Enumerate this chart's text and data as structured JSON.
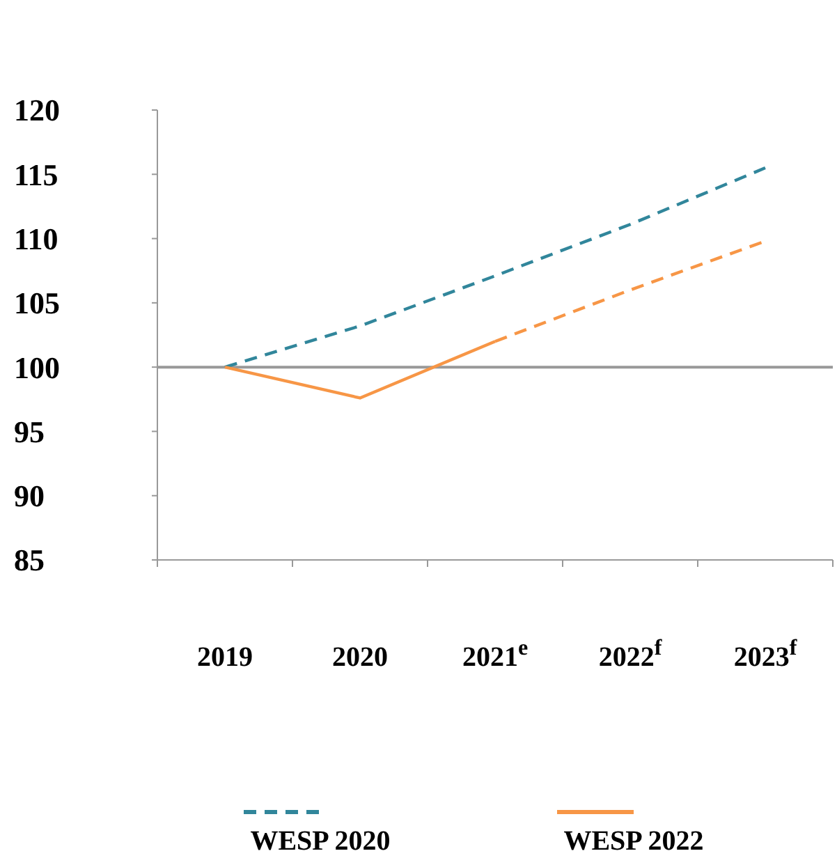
{
  "chart_data": {
    "type": "line",
    "categories": [
      "2019",
      "2020",
      "2021$^{e}$",
      "2022$^{f}$",
      "2023$^{f}$"
    ],
    "series": [
      {
        "name": "WESP 2020",
        "color": "#31869b",
        "values": [
          100,
          103.2,
          107.1,
          111.1,
          115.5
        ],
        "line_style": "dashed"
      },
      {
        "name": "WESP 2022",
        "color": "#f79646",
        "values": [
          100,
          97.6,
          102,
          null,
          null
        ],
        "line_style": "solid"
      },
      {
        "color": "#f79646",
        "values": [
          null,
          null,
          102,
          106,
          109.8
        ],
        "line_style": "dashed"
      }
    ],
    "ylim": [
      85,
      120
    ],
    "yticks": [
      85,
      90,
      95,
      100,
      105,
      110,
      115,
      120
    ],
    "ref_lines": [
      {
        "axis": "y",
        "value": 100,
        "color": "#999999"
      }
    ],
    "grid": false,
    "legend": "bottom",
    "marker": "none"
  }
}
